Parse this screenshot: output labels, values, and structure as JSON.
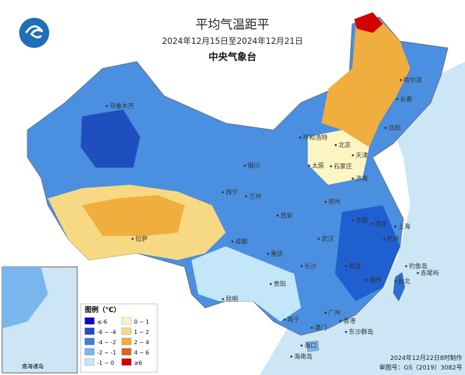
{
  "header": {
    "title": "平均气温距平",
    "subtitle": "2024年12月15日至2024年12月21日",
    "agency": "中央气象台"
  },
  "legend": {
    "title": "图例（℃）",
    "items": [
      {
        "label": "≤-6",
        "color": "#0a0acc"
      },
      {
        "label": "-6 ~ -4",
        "color": "#1f4fbf"
      },
      {
        "label": "-4 ~ -2",
        "color": "#3a7fd9"
      },
      {
        "label": "-2 ~ -1",
        "color": "#7ab6ee"
      },
      {
        "label": "-1 ~ 0",
        "color": "#c3e6f8"
      },
      {
        "label": "0 ~ 1",
        "color": "#fdf6c2"
      },
      {
        "label": "1 ~ 2",
        "color": "#f7d983"
      },
      {
        "label": "2 ~ 4",
        "color": "#f0ae3e"
      },
      {
        "label": "4 ~ 6",
        "color": "#e65f1f"
      },
      {
        "label": "≥6",
        "color": "#d40000"
      }
    ]
  },
  "cities": [
    "乌鲁木齐",
    "哈尔滨",
    "长春",
    "沈阳",
    "呼和浩特",
    "北京",
    "天津",
    "石家庄",
    "太原",
    "济南",
    "银川",
    "西宁",
    "兰州",
    "郑州",
    "西安",
    "合肥",
    "南京",
    "上海",
    "杭州",
    "武汉",
    "成都",
    "重庆",
    "长沙",
    "南昌",
    "福州",
    "台北",
    "贵阳",
    "昆明",
    "南宁",
    "广州",
    "香港",
    "澳门",
    "海口",
    "拉萨",
    "钓鱼岛",
    "赤尾屿",
    "东沙群岛",
    "海南岛"
  ],
  "inset": {
    "label": "南海诸岛"
  },
  "footer": {
    "made": "2024年12月22日8时制作",
    "approval": "审图号：GS（2019）3082号"
  }
}
